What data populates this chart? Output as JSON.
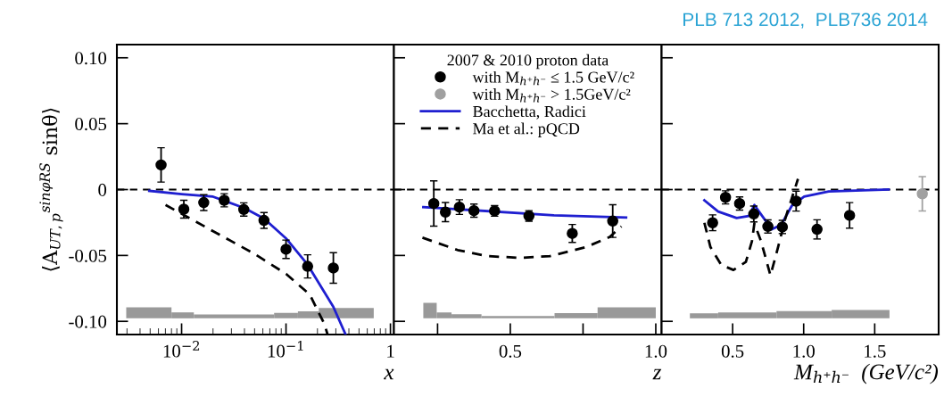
{
  "chart_data": [
    {
      "type": "scatter",
      "ylabel": "⟨A$_{UT,p}$$^{sinφRS}$ sinθ⟩",
      "xlabel": "x",
      "log": "x",
      "xlim": [
        0.0024,
        1.08
      ],
      "xticks": [
        {
          "value": 0.01,
          "label": "10$^{−2}$"
        },
        {
          "value": 0.1,
          "label": "10$^{−1}$"
        },
        1
      ],
      "ylim": [
        -0.11,
        0.11
      ],
      "yticks": [
        {
          "value": -0.1,
          "label": "-0.10"
        },
        {
          "value": -0.05,
          "label": "-0.05"
        },
        0,
        {
          "value": 0.05,
          "label": "0.05"
        },
        {
          "value": 0.1,
          "label": "0.10"
        }
      ],
      "ref_lines": [
        {
          "axis": "y",
          "value": 0,
          "color": "#000000",
          "line_style": "dashed"
        }
      ],
      "series": [
        {
          "type": "histogram",
          "color": "#999999",
          "bins": [
            0.00295,
            0.008,
            0.0131,
            0.0769,
            0.13,
            0.206,
            0.692
          ],
          "base": [
            -0.0977,
            -0.0977,
            -0.0977,
            -0.0977,
            -0.0977,
            -0.0977
          ],
          "values": [
            0.0083,
            0.0045,
            0.0029,
            0.0041,
            0.0053,
            0.0078
          ]
        },
        {
          "type": "line",
          "color": "#1f1fd0",
          "line_style": "solid",
          "x": [
            0.0049,
            0.01,
            0.02,
            0.04,
            0.0615,
            0.1,
            0.161,
            0.284,
            0.372
          ],
          "values": [
            -0.001,
            -0.0035,
            -0.0054,
            -0.014,
            -0.022,
            -0.037,
            -0.057,
            -0.089,
            -0.11
          ]
        },
        {
          "type": "line",
          "color": "#000000",
          "line_style": "dashed",
          "x": [
            0.00702,
            0.0123,
            0.0236,
            0.0485,
            0.1,
            0.169,
            0.234,
            0.25
          ],
          "values": [
            -0.0117,
            -0.0223,
            -0.0347,
            -0.0482,
            -0.064,
            -0.0797,
            -0.1023,
            -0.11
          ]
        },
        {
          "color": "#000000",
          "marker": "circle",
          "x": [
            0.00636,
            0.0105,
            0.0163,
            0.0256,
            0.0394,
            0.0615,
            0.1,
            0.161,
            0.284
          ],
          "values": [
            0.0187,
            -0.0149,
            -0.0099,
            -0.0081,
            -0.0151,
            -0.0234,
            -0.0453,
            -0.0583,
            -0.0595
          ],
          "errors": [
            0.013,
            0.0068,
            0.006,
            0.005,
            0.005,
            0.006,
            0.007,
            0.0088,
            0.0116
          ]
        }
      ]
    },
    {
      "type": "scatter",
      "xlabel": "z",
      "tick_labels": "x",
      "legend": "top",
      "legend_title": "2007 & 2010 proton data",
      "xlim": [
        0.1,
        1.02
      ],
      "xticks": [
        {
          "value": 0.25,
          "label": null
        },
        0.5,
        {
          "value": 0.75,
          "label": null
        },
        {
          "value": 1.0,
          "label": "1.0"
        }
      ],
      "ylim": [
        -0.11,
        0.11
      ],
      "yticks": [
        -0.1,
        -0.05,
        0,
        0.05,
        0.1
      ],
      "ref_lines": [
        {
          "axis": "y",
          "value": 0,
          "color": "#000000",
          "line_style": "dashed"
        }
      ],
      "series": [
        {
          "type": "histogram",
          "color": "#999999",
          "bins": [
            0.201,
            0.247,
            0.298,
            0.401,
            0.652,
            0.8,
            1.0
          ],
          "base": [
            -0.0977,
            -0.0977,
            -0.0977,
            -0.0977,
            -0.0977,
            -0.0977
          ],
          "values": [
            0.0117,
            0.0045,
            0.0031,
            0.0017,
            0.004,
            0.0083
          ]
        },
        {
          "type": "line",
          "name": "Bacchetta, Radici",
          "color": "#1f1fd0",
          "line_style": "solid",
          "x": [
            0.201,
            0.65,
            0.898
          ],
          "values": [
            -0.0133,
            -0.0195,
            -0.0212
          ]
        },
        {
          "type": "line",
          "name": "Ma et al.: pQCD",
          "color": "#000000",
          "line_style": "dashed",
          "x": [
            0.198,
            0.319,
            0.421,
            0.535,
            0.636,
            0.76,
            0.841,
            0.882
          ],
          "values": [
            -0.0365,
            -0.0459,
            -0.0505,
            -0.0518,
            -0.0505,
            -0.0437,
            -0.036,
            -0.028
          ]
        },
        {
          "name": "with M$_{h⁺h⁻}$ ≤ 1.5 GeV/c²",
          "color": "#000000",
          "marker": "circle",
          "x": [
            0.237,
            0.277,
            0.325,
            0.375,
            0.446,
            0.564,
            0.713,
            0.852
          ],
          "values": [
            -0.0106,
            -0.0171,
            -0.0133,
            -0.016,
            -0.0162,
            -0.02,
            -0.0333,
            -0.0239
          ],
          "errors": [
            0.0172,
            0.0073,
            0.0056,
            0.005,
            0.004,
            0.004,
            0.0068,
            0.0124
          ]
        }
      ]
    },
    {
      "type": "scatter",
      "xlabel": "M$_{h⁺h⁻}$  (GeV/c²)",
      "tick_labels": "x",
      "annotations": [
        "PLB 713 2012,  PLB736 2014"
      ],
      "xlim": [
        0,
        1.95
      ],
      "xticks": [
        0.5,
        {
          "value": 1.0,
          "label": "1.0"
        },
        1.5
      ],
      "ylim": [
        -0.11,
        0.11
      ],
      "yticks": [
        -0.1,
        -0.05,
        0,
        0.05,
        0.1
      ],
      "ref_lines": [
        {
          "axis": "y",
          "value": 0,
          "color": "#000000",
          "line_style": "dashed"
        }
      ],
      "series": [
        {
          "type": "histogram",
          "color": "#999999",
          "bins": [
            0.199,
            0.398,
            0.809,
            1.197,
            1.604
          ],
          "base": [
            -0.0977,
            -0.0977,
            -0.0977,
            -0.0977
          ],
          "values": [
            0.0038,
            0.0045,
            0.0054,
            0.0063
          ]
        },
        {
          "type": "line",
          "color": "#1f1fd0",
          "line_style": "solid",
          "x": [
            0.301,
            0.398,
            0.528,
            0.614,
            0.653,
            0.7,
            0.776,
            0.841,
            0.917,
            1.003,
            1.176,
            1.597
          ],
          "values": [
            -0.0081,
            -0.0167,
            -0.0216,
            -0.02,
            -0.0117,
            -0.0189,
            -0.0302,
            -0.0268,
            -0.0122,
            -0.0054,
            -0.0014,
            0
          ]
        },
        {
          "type": "line",
          "color": "#000000",
          "line_style": "dashed",
          "x": [
            0.301,
            0.344,
            0.42,
            0.506,
            0.593,
            0.636,
            0.653,
            0.7,
            0.766,
            0.809,
            0.873,
            0.96
          ],
          "values": [
            -0.0252,
            -0.0437,
            -0.0572,
            -0.061,
            -0.0549,
            -0.0392,
            -0.0257,
            -0.0392,
            -0.0651,
            -0.0482,
            -0.0212,
            0.0081
          ]
        },
        {
          "color": "#000000",
          "marker": "circle",
          "x": [
            0.359,
            0.45,
            0.549,
            0.649,
            0.748,
            0.85,
            0.947,
            1.094,
            1.323
          ],
          "values": [
            -0.0252,
            -0.0059,
            -0.0106,
            -0.0185,
            -0.028,
            -0.0284,
            -0.0088,
            -0.0302,
            -0.0196
          ],
          "errors": [
            0.006,
            0.005,
            0.005,
            0.006,
            0.005,
            0.005,
            0.0075,
            0.0073,
            0.0097
          ]
        },
        {
          "name": "with M$_{h⁺h⁻}$ > 1.5GeV/c²",
          "color": "#a0a0a0",
          "marker": "circle",
          "x": [
            1.835
          ],
          "values": [
            -0.0032
          ],
          "errors": [
            0.013
          ]
        }
      ]
    }
  ]
}
